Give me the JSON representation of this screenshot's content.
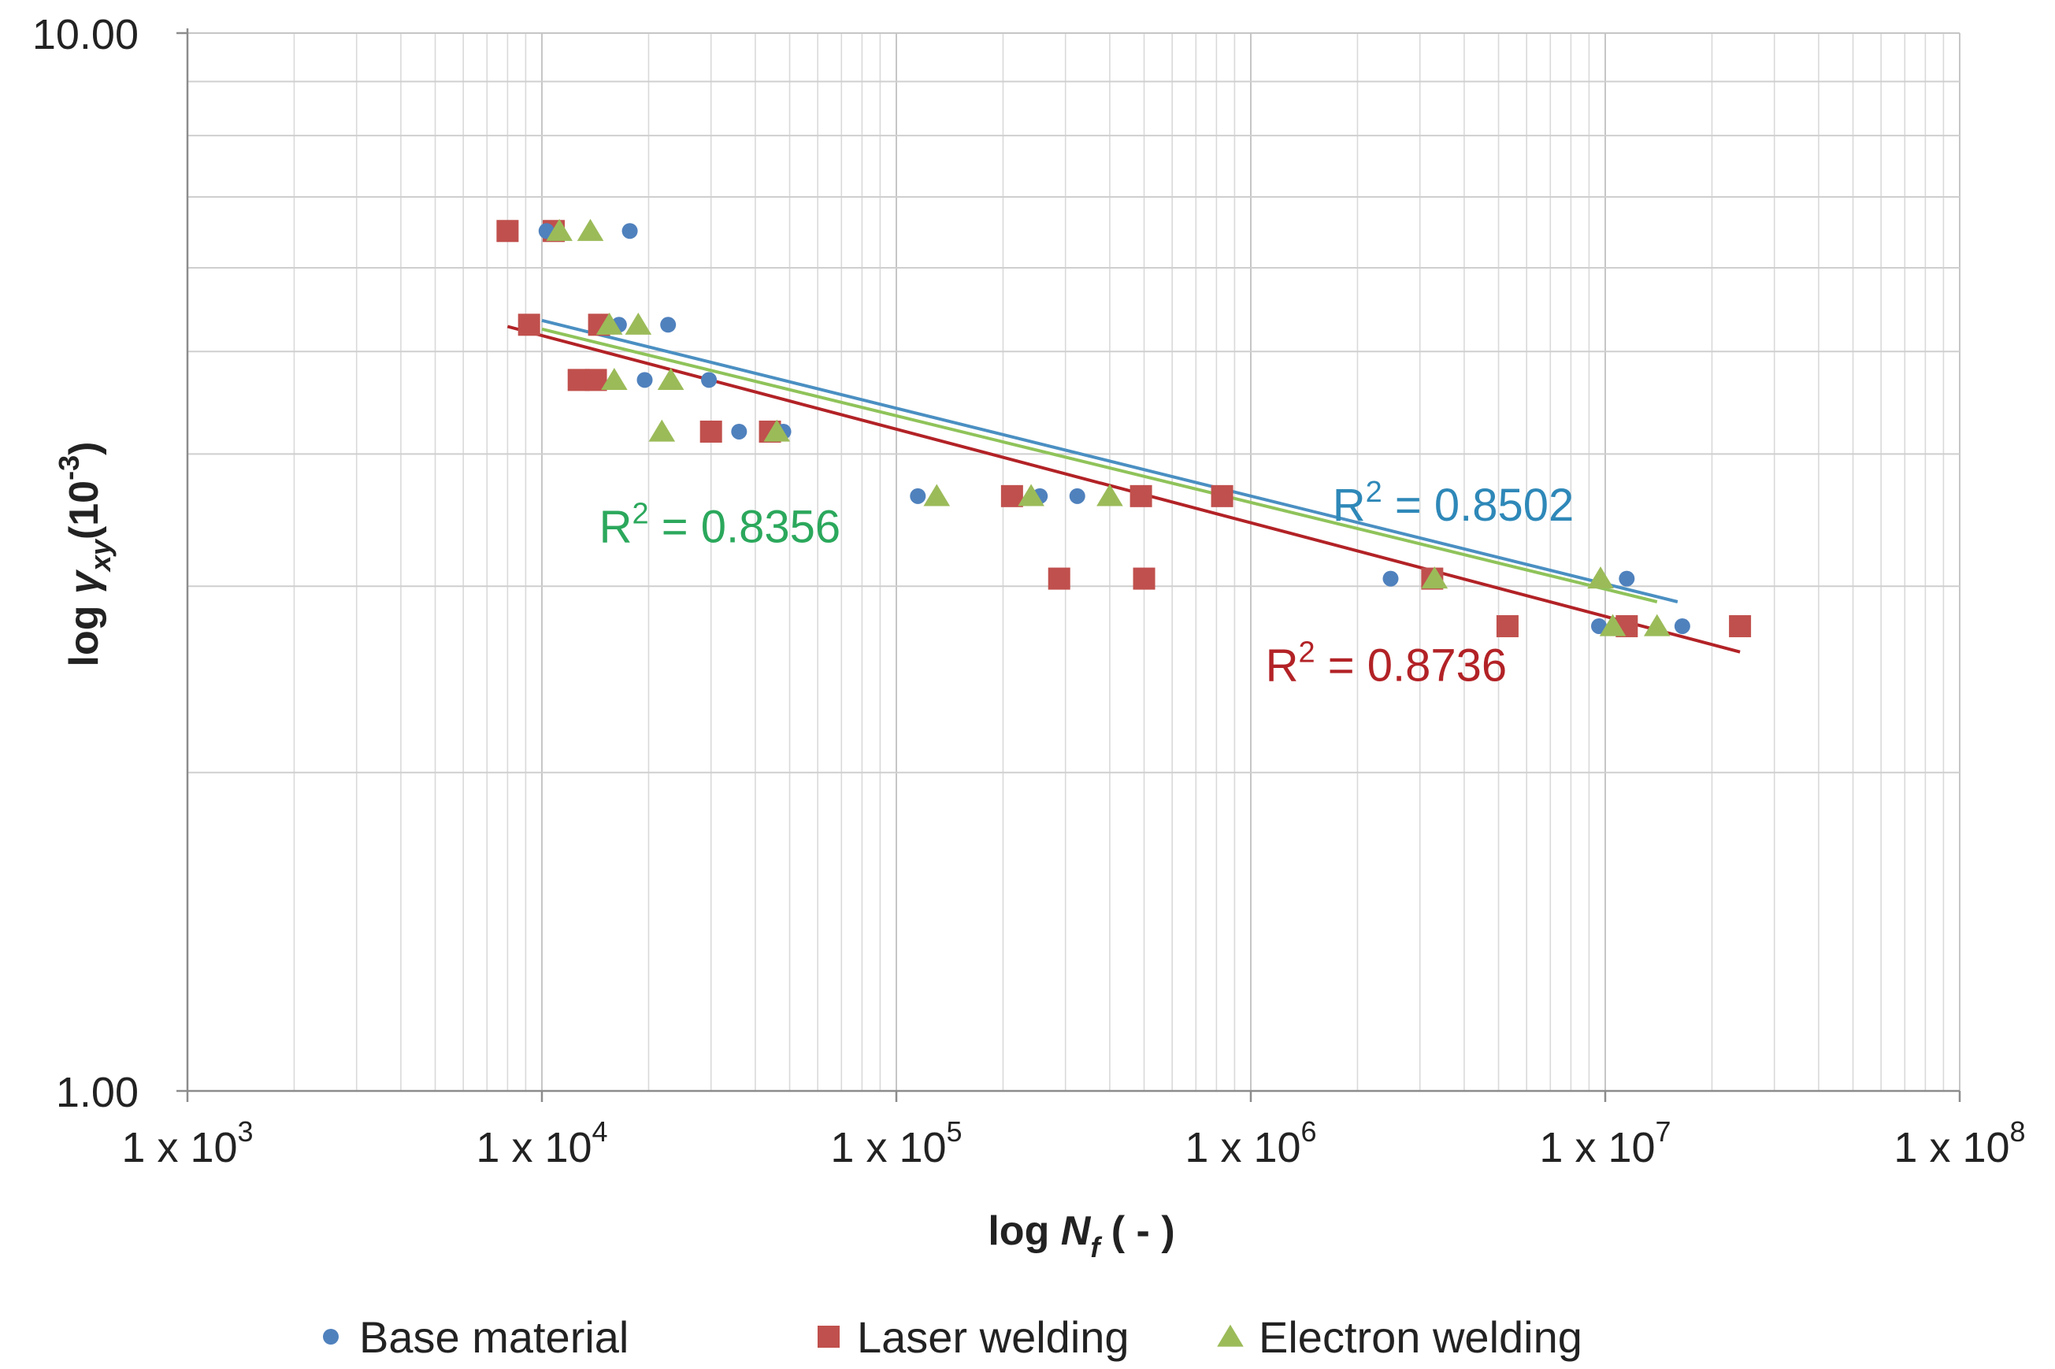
{
  "chart_data": {
    "type": "scatter",
    "xscale": "log",
    "yscale": "log",
    "xlim": [
      1000,
      100000000
    ],
    "ylim": [
      1.0,
      10.0
    ],
    "xlabel": {
      "prefix": "log ",
      "symbol": "N",
      "sub": "f",
      "suffix": " ( - )"
    },
    "ylabel": {
      "prefix": "log ",
      "symbol": "γ",
      "sub": "xy",
      "unit_base": "(10",
      "unit_exp": "-3",
      "unit_close": ")"
    },
    "xticks": [
      {
        "value": 1000,
        "base": "1 x 10",
        "exp": "3"
      },
      {
        "value": 10000,
        "base": "1 x 10",
        "exp": "4"
      },
      {
        "value": 100000,
        "base": "1 x 10",
        "exp": "5"
      },
      {
        "value": 1000000,
        "base": "1 x 10",
        "exp": "6"
      },
      {
        "value": 10000000,
        "base": "1 x 10",
        "exp": "7"
      },
      {
        "value": 100000000,
        "base": "1 x 10",
        "exp": "8"
      }
    ],
    "yticks": [
      {
        "value": 1.0,
        "label": "1.00"
      },
      {
        "value": 10.0,
        "label": "10.00"
      }
    ],
    "grid": true,
    "legend_position": "bottom",
    "series": [
      {
        "name": "Base material",
        "marker": "circle",
        "color": "#4f81bd",
        "trend_color": "#4a8fc2",
        "r2": "0.8502",
        "trend": {
          "x": [
            10000,
            16000000
          ],
          "y": [
            5.35,
            2.9
          ]
        },
        "points": [
          [
            10300,
            6.5
          ],
          [
            17700,
            6.5
          ],
          [
            16500,
            5.3
          ],
          [
            22700,
            5.3
          ],
          [
            19500,
            4.7
          ],
          [
            29600,
            4.7
          ],
          [
            36000,
            4.2
          ],
          [
            48000,
            4.2
          ],
          [
            115000,
            3.65
          ],
          [
            254000,
            3.65
          ],
          [
            324000,
            3.65
          ],
          [
            2480000,
            3.05
          ],
          [
            11500000,
            3.05
          ],
          [
            9600000,
            2.75
          ],
          [
            16500000,
            2.75
          ]
        ]
      },
      {
        "name": "Laser welding",
        "marker": "square",
        "color": "#c0504d",
        "trend_color": "#b22226",
        "r2": "0.8736",
        "trend": {
          "x": [
            8000,
            24000000
          ],
          "y": [
            5.28,
            2.6
          ]
        },
        "points": [
          [
            8000,
            6.5
          ],
          [
            10800,
            6.5
          ],
          [
            9200,
            5.3
          ],
          [
            14500,
            5.3
          ],
          [
            12700,
            4.7
          ],
          [
            14200,
            4.7
          ],
          [
            30000,
            4.2
          ],
          [
            44000,
            4.2
          ],
          [
            212000,
            3.65
          ],
          [
            490000,
            3.65
          ],
          [
            830000,
            3.65
          ],
          [
            288000,
            3.05
          ],
          [
            500000,
            3.05
          ],
          [
            3250000,
            3.05
          ],
          [
            5300000,
            2.75
          ],
          [
            11500000,
            2.75
          ],
          [
            24000000,
            2.75
          ]
        ]
      },
      {
        "name": "Electron welding",
        "marker": "triangle",
        "color": "#9bbb59",
        "trend_color": "#8fc35a",
        "r2": "0.8356",
        "trend": {
          "x": [
            10000,
            14000000
          ],
          "y": [
            5.25,
            2.9
          ]
        },
        "points": [
          [
            11200,
            6.5
          ],
          [
            13700,
            6.5
          ],
          [
            15500,
            5.3
          ],
          [
            18700,
            5.3
          ],
          [
            16000,
            4.7
          ],
          [
            23100,
            4.7
          ],
          [
            21800,
            4.2
          ],
          [
            46000,
            4.2
          ],
          [
            130000,
            3.65
          ],
          [
            240000,
            3.65
          ],
          [
            400000,
            3.65
          ],
          [
            3300000,
            3.05
          ],
          [
            9700000,
            3.05
          ],
          [
            10500000,
            2.75
          ],
          [
            14000000,
            2.75
          ]
        ]
      }
    ],
    "annotations": [
      {
        "series": 0,
        "text_base": "R",
        "text_exp": "2",
        "text_rest": " = 0.8502",
        "color": "#2e88b8",
        "x": 1700000,
        "y": 3.46
      },
      {
        "series": 2,
        "text_base": "R",
        "text_exp": "2",
        "text_rest": " = 0.8356",
        "color": "#2ba85c",
        "x": 14500,
        "y": 3.3
      },
      {
        "series": 1,
        "text_base": "R",
        "text_exp": "2",
        "text_rest": " = 0.8736",
        "color": "#b22226",
        "x": 1100000,
        "y": 2.44
      }
    ]
  }
}
